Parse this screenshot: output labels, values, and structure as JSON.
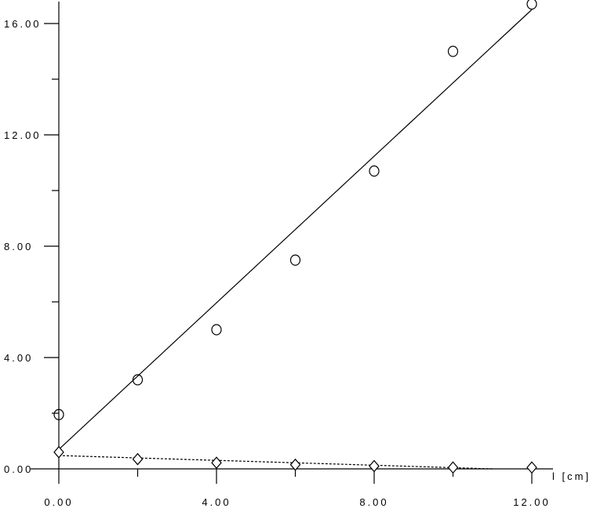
{
  "chart_data": {
    "type": "scatter",
    "title": "",
    "xlabel": "l [cm]",
    "ylabel": "",
    "xlim": [
      0,
      12
    ],
    "ylim": [
      0,
      16.8
    ],
    "grid": false,
    "x_ticks": [
      "0.00",
      "4.00",
      "8.00",
      "12.00"
    ],
    "x_tick_values": [
      0,
      4,
      8,
      12
    ],
    "x_minor_ticks": [
      2,
      6,
      10
    ],
    "y_ticks": [
      "0.00",
      "4.00",
      "8.00",
      "12.00",
      "16.00"
    ],
    "y_tick_values": [
      0,
      4,
      8,
      12,
      16
    ],
    "y_minor_ticks": [
      2,
      6,
      10,
      14
    ],
    "series": [
      {
        "marker": "circle",
        "x": [
          0,
          2,
          4,
          6,
          8,
          10,
          12
        ],
        "y": [
          1.95,
          3.2,
          5.0,
          7.5,
          10.7,
          15.0,
          16.7
        ],
        "fit": {
          "style": "solid",
          "x": [
            0,
            12
          ],
          "y": [
            0.7,
            16.5
          ]
        }
      },
      {
        "marker": "diamond",
        "x": [
          0,
          2,
          4,
          6,
          8,
          10,
          12
        ],
        "y": [
          0.6,
          0.35,
          0.22,
          0.15,
          0.1,
          0.05,
          0.05
        ],
        "fit": {
          "style": "dashed",
          "x": [
            0,
            11
          ],
          "y": [
            0.48,
            0.0
          ]
        }
      }
    ],
    "colors": {
      "ink": "#000000",
      "background": "#ffffff"
    }
  }
}
